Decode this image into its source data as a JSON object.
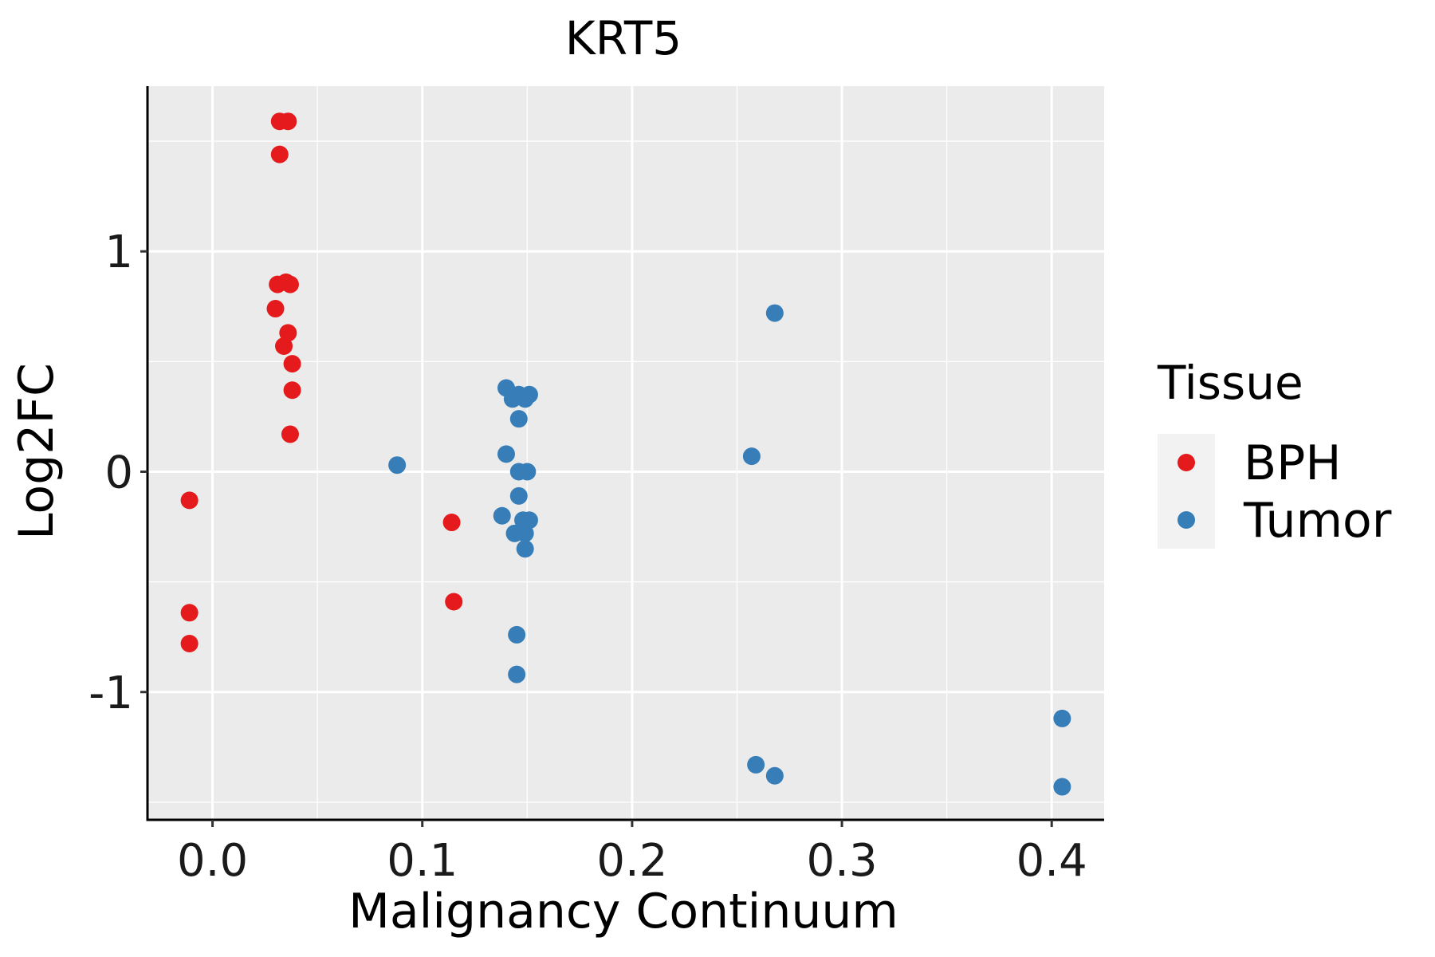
{
  "chart_data": {
    "type": "scatter",
    "title": "KRT5",
    "xlabel": "Malignancy Continuum",
    "ylabel": "Log2FC",
    "xlim": [
      -0.031,
      0.425
    ],
    "ylim": [
      -1.58,
      1.75
    ],
    "x_ticks": [
      0.0,
      0.1,
      0.2,
      0.3,
      0.4
    ],
    "x_tick_labels": [
      "0.0",
      "0.1",
      "0.2",
      "0.3",
      "0.4"
    ],
    "y_ticks": [
      -1,
      0,
      1
    ],
    "y_tick_labels": [
      "-1",
      "0",
      "1"
    ],
    "grid": true,
    "legend": {
      "title": "Tissue",
      "position": "right"
    },
    "series": [
      {
        "name": "BPH",
        "color": "#e41a1c",
        "points": [
          [
            0.032,
            1.59
          ],
          [
            0.036,
            1.59
          ],
          [
            0.032,
            1.44
          ],
          [
            0.031,
            0.85
          ],
          [
            0.035,
            0.86
          ],
          [
            0.037,
            0.85
          ],
          [
            0.03,
            0.74
          ],
          [
            0.036,
            0.63
          ],
          [
            0.034,
            0.57
          ],
          [
            0.038,
            0.49
          ],
          [
            0.038,
            0.37
          ],
          [
            0.037,
            0.17
          ],
          [
            -0.011,
            -0.13
          ],
          [
            -0.011,
            -0.64
          ],
          [
            -0.011,
            -0.78
          ],
          [
            0.114,
            -0.23
          ],
          [
            0.115,
            -0.59
          ]
        ]
      },
      {
        "name": "Tumor",
        "color": "#377eb8",
        "points": [
          [
            0.088,
            0.03
          ],
          [
            0.14,
            0.38
          ],
          [
            0.143,
            0.33
          ],
          [
            0.146,
            0.35
          ],
          [
            0.149,
            0.33
          ],
          [
            0.151,
            0.35
          ],
          [
            0.146,
            0.24
          ],
          [
            0.14,
            0.08
          ],
          [
            0.146,
            0.0
          ],
          [
            0.15,
            0.0
          ],
          [
            0.146,
            -0.11
          ],
          [
            0.138,
            -0.2
          ],
          [
            0.148,
            -0.22
          ],
          [
            0.151,
            -0.22
          ],
          [
            0.144,
            -0.28
          ],
          [
            0.149,
            -0.28
          ],
          [
            0.149,
            -0.35
          ],
          [
            0.145,
            -0.74
          ],
          [
            0.145,
            -0.92
          ],
          [
            0.268,
            0.72
          ],
          [
            0.257,
            0.07
          ],
          [
            0.259,
            -1.33
          ],
          [
            0.268,
            -1.38
          ],
          [
            0.405,
            -1.12
          ],
          [
            0.405,
            -1.43
          ]
        ]
      }
    ]
  }
}
